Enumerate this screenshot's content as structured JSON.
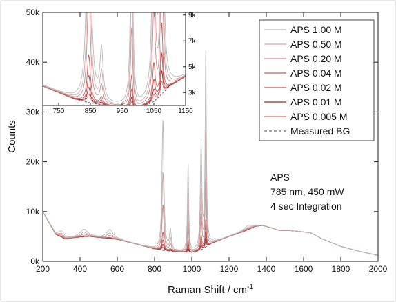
{
  "chart_data": {
    "type": "line",
    "xlabel": "Raman Shift / cm",
    "xlabel_sup": "-1",
    "ylabel": "Counts",
    "xlim": [
      200,
      2000
    ],
    "ylim": [
      0,
      50000
    ],
    "x_ticks": [
      200,
      400,
      600,
      800,
      1000,
      1200,
      1400,
      1600,
      1800,
      2000
    ],
    "y_ticks": [
      {
        "value": 0,
        "label": "0k"
      },
      {
        "value": 10000,
        "label": "10k"
      },
      {
        "value": 20000,
        "label": "20k"
      },
      {
        "value": 30000,
        "label": "30k"
      },
      {
        "value": 40000,
        "label": "40k"
      },
      {
        "value": 50000,
        "label": "50k"
      }
    ],
    "annotation": [
      "APS",
      "785 nm, 450 mW",
      "4 sec Integration"
    ],
    "legend_position": "top-right",
    "series": [
      {
        "name": "APS 1.00 M",
        "color": "#b9b9b9",
        "dash": false,
        "scale": 1.0
      },
      {
        "name": "APS 0.50 M",
        "color": "#cfa9a9",
        "dash": false,
        "scale": 0.6
      },
      {
        "name": "APS 0.20 M",
        "color": "#c98a8a",
        "dash": false,
        "scale": 0.35
      },
      {
        "name": "APS 0.04 M",
        "color": "#b86565",
        "dash": false,
        "scale": 0.14
      },
      {
        "name": "APS 0.02 M",
        "color": "#c54848",
        "dash": false,
        "scale": 0.08
      },
      {
        "name": "APS 0.01 M",
        "color": "#a02828",
        "dash": false,
        "scale": 0.045
      },
      {
        "name": "APS 0.005 M",
        "color": "#e06a6a",
        "dash": false,
        "scale": 0.025
      },
      {
        "name": "Measured BG",
        "color": "#6b6b6b",
        "dash": true,
        "scale": 0.0
      }
    ],
    "background": [
      [
        200,
        10000
      ],
      [
        230,
        8000
      ],
      [
        270,
        5400
      ],
      [
        320,
        4500
      ],
      [
        380,
        4800
      ],
      [
        450,
        5000
      ],
      [
        520,
        4700
      ],
      [
        600,
        4400
      ],
      [
        700,
        3500
      ],
      [
        800,
        2500
      ],
      [
        850,
        2200
      ],
      [
        900,
        2000
      ],
      [
        950,
        1900
      ],
      [
        1000,
        1800
      ],
      [
        1050,
        2300
      ],
      [
        1100,
        3500
      ],
      [
        1200,
        5000
      ],
      [
        1280,
        6000
      ],
      [
        1340,
        7000
      ],
      [
        1380,
        7200
      ],
      [
        1420,
        6800
      ],
      [
        1470,
        6200
      ],
      [
        1520,
        6200
      ],
      [
        1580,
        6000
      ],
      [
        1640,
        5700
      ],
      [
        1700,
        4500
      ],
      [
        1800,
        3000
      ],
      [
        1900,
        2000
      ],
      [
        2000,
        1200
      ]
    ],
    "peaks": [
      {
        "x": 845,
        "height": 26000,
        "width": 6
      },
      {
        "x": 885,
        "height": 4000,
        "width": 6
      },
      {
        "x": 980,
        "height": 17500,
        "width": 4
      },
      {
        "x": 1050,
        "height": 20500,
        "width": 5
      },
      {
        "x": 1075,
        "height": 38500,
        "width": 4
      },
      {
        "x": 300,
        "height": 1200,
        "width": 18
      },
      {
        "x": 420,
        "height": 1500,
        "width": 22
      },
      {
        "x": 560,
        "height": 1800,
        "width": 20
      },
      {
        "x": 1300,
        "height": 800,
        "width": 25
      }
    ],
    "inset": {
      "xlim": [
        700,
        1150
      ],
      "ylim": [
        2000,
        9200
      ],
      "x_ticks": [
        750,
        850,
        950,
        1050,
        1150
      ],
      "y_ticks": [
        {
          "value": 3000,
          "label": "3k"
        },
        {
          "value": 5000,
          "label": "5k"
        },
        {
          "value": 7000,
          "label": "7k"
        },
        {
          "value": 9000,
          "label": "9k"
        }
      ]
    }
  }
}
